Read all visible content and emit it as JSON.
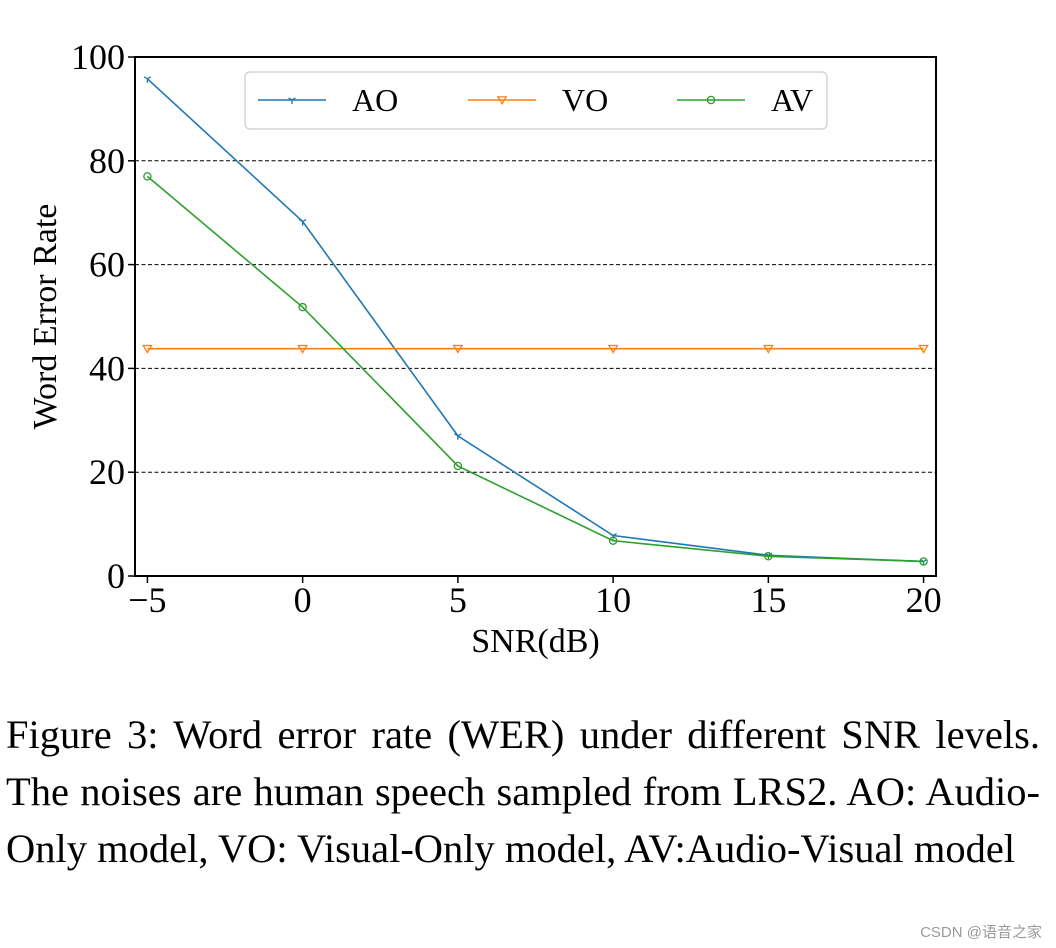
{
  "chart_data": {
    "type": "line",
    "title": "",
    "xlabel": "SNR(dB)",
    "ylabel": "Word Error Rate",
    "x": [
      -5,
      0,
      5,
      10,
      15,
      20
    ],
    "x_tick_labels": [
      "−5",
      "0",
      "5",
      "10",
      "15",
      "20"
    ],
    "y_ticks": [
      0,
      20,
      40,
      60,
      80,
      100
    ],
    "y_tick_labels": [
      "0",
      "20",
      "40",
      "60",
      "80",
      "100"
    ],
    "xlim": [
      -5.4,
      20.4
    ],
    "ylim": [
      0,
      100
    ],
    "grid": "horizontal dashed",
    "legend_position": "top-center",
    "series": [
      {
        "name": "AO",
        "color": "#1f77b4",
        "marker": "tri-down",
        "values": [
          95.8,
          68.3,
          27.0,
          7.8,
          4.0,
          2.8
        ]
      },
      {
        "name": "VO",
        "color": "#ff7f0e",
        "marker": "triangle-down",
        "values": [
          43.8,
          43.8,
          43.8,
          43.8,
          43.8,
          43.8
        ]
      },
      {
        "name": "AV",
        "color": "#2ca02c",
        "marker": "circle",
        "values": [
          77.0,
          51.8,
          21.2,
          6.8,
          3.8,
          2.8
        ]
      }
    ]
  },
  "caption": "Figure 3: Word error rate (WER) under different SNR levels.  The noises are human speech sampled from LRS2.  AO: Audio-Only model, VO: Visual-Only model, AV:Audio-Visual model",
  "watermark": "CSDN @语音之家"
}
